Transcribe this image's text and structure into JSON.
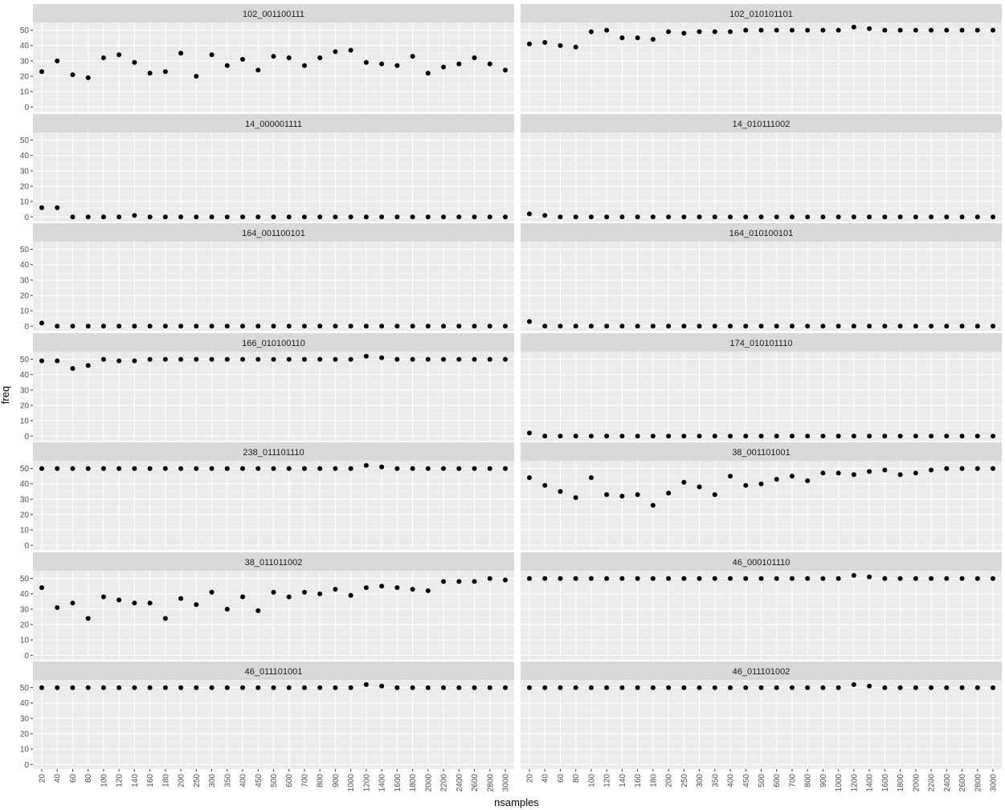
{
  "chart_data": {
    "type": "scatter",
    "facet_layout": {
      "columns": 2,
      "rows": 7
    },
    "xlabel": "nsamples",
    "ylabel": "freq",
    "x_categories": [
      "20",
      "40",
      "60",
      "80",
      "100",
      "120",
      "140",
      "160",
      "180",
      "200",
      "250",
      "300",
      "350",
      "400",
      "450",
      "500",
      "600",
      "700",
      "800",
      "900",
      "1000",
      "1200",
      "1400",
      "1600",
      "1800",
      "2000",
      "2200",
      "2400",
      "2600",
      "2800",
      "3000"
    ],
    "y_ticks": [
      0,
      10,
      20,
      30,
      40,
      50
    ],
    "ylim": [
      -3,
      55
    ],
    "grid": true,
    "legend": "none",
    "colors": {
      "panel_bg": "#ebebeb",
      "strip_bg": "#d9d9d9",
      "grid_major": "#ffffff",
      "point": "#000000"
    },
    "panels": [
      {
        "title": "102_001100111",
        "values": [
          23,
          30,
          21,
          19,
          32,
          34,
          29,
          22,
          23,
          35,
          20,
          34,
          27,
          31,
          24,
          33,
          32,
          27,
          32,
          36,
          37,
          29,
          28,
          27,
          33,
          22,
          26,
          28,
          32,
          28,
          24
        ]
      },
      {
        "title": "102_010101101",
        "values": [
          41,
          42,
          40,
          39,
          49,
          50,
          45,
          45,
          44,
          49,
          48,
          49,
          49,
          49,
          50,
          50,
          50,
          50,
          50,
          50,
          50,
          52,
          51,
          50,
          50,
          50,
          50,
          50,
          50,
          50,
          50
        ]
      },
      {
        "title": "14_000001111",
        "values": [
          6,
          6,
          0,
          0,
          0,
          0,
          1,
          0,
          0,
          0,
          0,
          0,
          0,
          0,
          0,
          0,
          0,
          0,
          0,
          0,
          0,
          0,
          0,
          0,
          0,
          0,
          0,
          0,
          0,
          0,
          0
        ]
      },
      {
        "title": "14_010111002",
        "values": [
          2,
          1,
          0,
          0,
          0,
          0,
          0,
          0,
          0,
          0,
          0,
          0,
          0,
          0,
          0,
          0,
          0,
          0,
          0,
          0,
          0,
          0,
          0,
          0,
          0,
          0,
          0,
          0,
          0,
          0,
          0
        ]
      },
      {
        "title": "164_001100101",
        "values": [
          2,
          0,
          0,
          0,
          0,
          0,
          0,
          0,
          0,
          0,
          0,
          0,
          0,
          0,
          0,
          0,
          0,
          0,
          0,
          0,
          0,
          0,
          0,
          0,
          0,
          0,
          0,
          0,
          0,
          0,
          0
        ]
      },
      {
        "title": "164_010100101",
        "values": [
          3,
          0,
          0,
          0,
          0,
          0,
          0,
          0,
          0,
          0,
          0,
          0,
          0,
          0,
          0,
          0,
          0,
          0,
          0,
          0,
          0,
          0,
          0,
          0,
          0,
          0,
          0,
          0,
          0,
          0,
          0
        ]
      },
      {
        "title": "166_010100110",
        "values": [
          49,
          49,
          44,
          46,
          50,
          49,
          49,
          50,
          50,
          50,
          50,
          50,
          50,
          50,
          50,
          50,
          50,
          50,
          50,
          50,
          50,
          52,
          51,
          50,
          50,
          50,
          50,
          50,
          50,
          50,
          50
        ]
      },
      {
        "title": "174_010101110",
        "values": [
          2,
          0,
          0,
          0,
          0,
          0,
          0,
          0,
          0,
          0,
          0,
          0,
          0,
          0,
          0,
          0,
          0,
          0,
          0,
          0,
          0,
          0,
          0,
          0,
          0,
          0,
          0,
          0,
          0,
          0,
          0
        ]
      },
      {
        "title": "238_011101110",
        "values": [
          50,
          50,
          50,
          50,
          50,
          50,
          50,
          50,
          50,
          50,
          50,
          50,
          50,
          50,
          50,
          50,
          50,
          50,
          50,
          50,
          50,
          52,
          51,
          50,
          50,
          50,
          50,
          50,
          50,
          50,
          50
        ]
      },
      {
        "title": "38_001101001",
        "values": [
          44,
          39,
          35,
          31,
          44,
          33,
          32,
          33,
          26,
          34,
          41,
          38,
          33,
          45,
          39,
          40,
          43,
          45,
          42,
          47,
          47,
          46,
          48,
          49,
          46,
          47,
          49,
          50,
          50,
          50,
          50
        ]
      },
      {
        "title": "38_011011002",
        "values": [
          44,
          31,
          34,
          24,
          38,
          36,
          34,
          34,
          24,
          37,
          33,
          41,
          30,
          38,
          29,
          41,
          38,
          41,
          40,
          43,
          39,
          44,
          45,
          44,
          43,
          42,
          48,
          48,
          48,
          50,
          49
        ]
      },
      {
        "title": "46_000101110",
        "values": [
          50,
          50,
          50,
          50,
          50,
          50,
          50,
          50,
          50,
          50,
          50,
          50,
          50,
          50,
          50,
          50,
          50,
          50,
          50,
          50,
          50,
          52,
          51,
          50,
          50,
          50,
          50,
          50,
          50,
          50,
          50
        ]
      },
      {
        "title": "46_011101001",
        "values": [
          50,
          50,
          50,
          50,
          50,
          50,
          50,
          50,
          50,
          50,
          50,
          50,
          50,
          50,
          50,
          50,
          50,
          50,
          50,
          50,
          50,
          52,
          51,
          50,
          50,
          50,
          50,
          50,
          50,
          50,
          50
        ]
      },
      {
        "title": "46_011101002",
        "values": [
          50,
          50,
          50,
          50,
          50,
          50,
          50,
          50,
          50,
          50,
          50,
          50,
          50,
          50,
          50,
          50,
          50,
          50,
          50,
          50,
          50,
          52,
          51,
          50,
          50,
          50,
          50,
          50,
          50,
          50,
          50
        ]
      }
    ]
  }
}
